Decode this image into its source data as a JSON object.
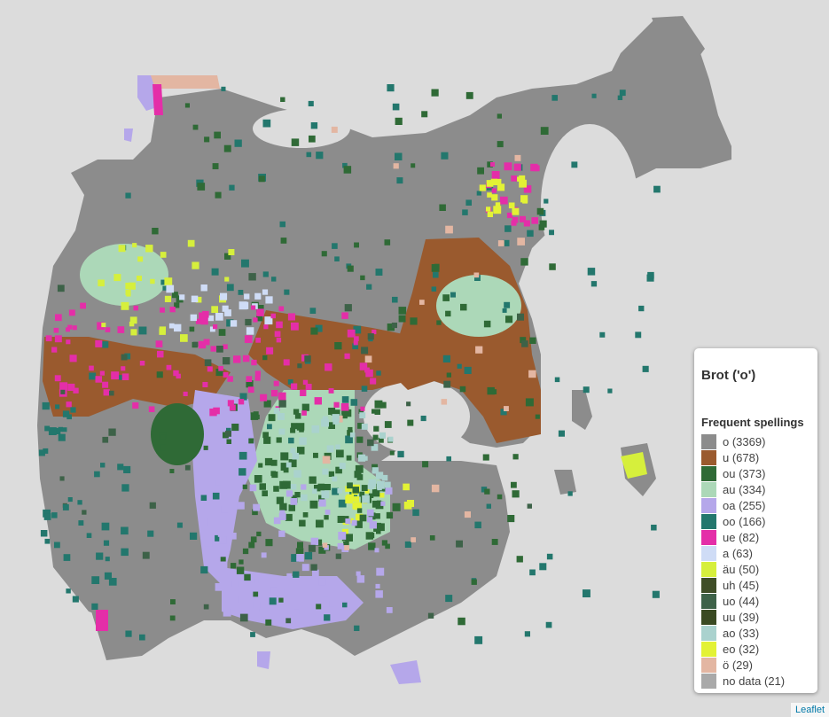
{
  "legend": {
    "title": "Brot ('o')",
    "subtitle": "Frequent spellings",
    "items": [
      {
        "label": "o (3369)",
        "color": "#8c8c8c"
      },
      {
        "label": "u (678)",
        "color": "#9a5a2e"
      },
      {
        "label": "ou (373)",
        "color": "#2f6a36"
      },
      {
        "label": "au (334)",
        "color": "#acd8b8"
      },
      {
        "label": "oa (255)",
        "color": "#b5a7ea"
      },
      {
        "label": "oo (166)",
        "color": "#23776d"
      },
      {
        "label": "ue (82)",
        "color": "#e42ea8"
      },
      {
        "label": "a (63)",
        "color": "#cfdcf6"
      },
      {
        "label": "äu (50)",
        "color": "#d6ef3c"
      },
      {
        "label": "uh (45)",
        "color": "#3f4e27"
      },
      {
        "label": "uo (44)",
        "color": "#3d6248"
      },
      {
        "label": "uu (39)",
        "color": "#3a4a22"
      },
      {
        "label": "ao (33)",
        "color": "#aad2ce"
      },
      {
        "label": "eo (32)",
        "color": "#e3f235"
      },
      {
        "label": "ö (29)",
        "color": "#e3b6a2"
      },
      {
        "label": "no data (21)",
        "color": "#a9a9a9"
      }
    ]
  },
  "attribution": "Leaflet",
  "map": {
    "background_color": "#dcdcdc",
    "region_color": "#8c8c8c"
  }
}
